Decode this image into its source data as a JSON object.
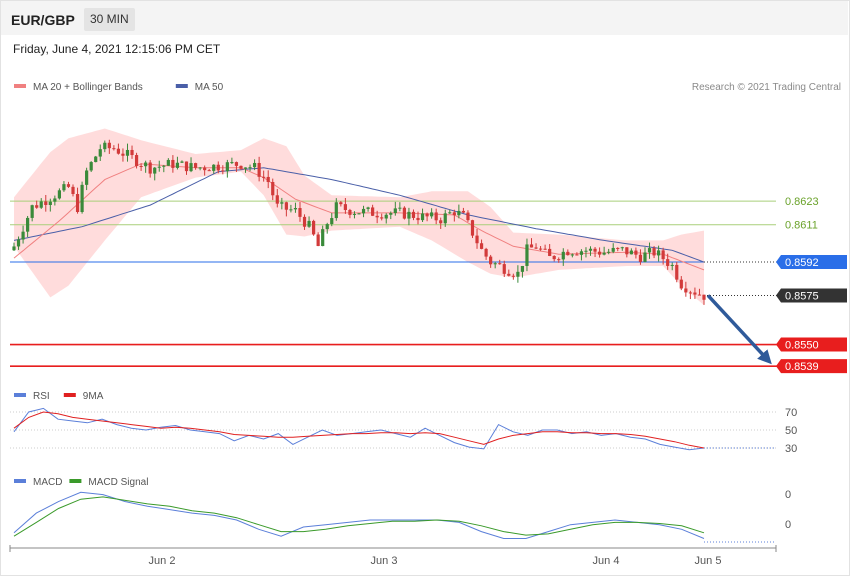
{
  "header": {
    "symbol": "EUR/GBP",
    "timeframe": "30 MIN"
  },
  "date_text": "Friday, June 4, 2021 12:15:06 PM CET",
  "copyright": "Research © 2021 Trading Central",
  "colors": {
    "bull": "#3a8a3a",
    "bear": "#d23a3a",
    "ma20": "#f08080",
    "ma50": "#4a5fa8",
    "band_fill": "#ffd6d6",
    "resistance": "#a9cf7a",
    "pivot": "#2a6ee8",
    "support": "#e81e1e",
    "price_tag": "#333333",
    "arrow": "#2f5a9a",
    "rsi": "#5b7fd9",
    "rsi_ma": "#e02020",
    "macd": "#5b7fd9",
    "macd_signal": "#3a9a2a"
  },
  "chart_data": [
    {
      "type": "candlestick",
      "name": "price",
      "legend": [
        {
          "label": "MA 20 + Bollinger Bands",
          "color": "#f08080"
        },
        {
          "label": "MA 50",
          "color": "#4a5fa8"
        }
      ],
      "x_tick_labels": [
        "Jun 2",
        "Jun 3",
        "Jun 4",
        "Jun 5"
      ],
      "ylim": [
        0.85345,
        0.86745
      ],
      "levels": [
        {
          "value": 0.8623,
          "label": "0.8623",
          "kind": "resistance"
        },
        {
          "value": 0.8611,
          "label": "0.8611",
          "kind": "resistance"
        },
        {
          "value": 0.8592,
          "label": "0.8592",
          "kind": "pivot"
        },
        {
          "value": 0.8575,
          "label": "0.8575",
          "kind": "last"
        },
        {
          "value": 0.855,
          "label": "0.8550",
          "kind": "support"
        },
        {
          "value": 0.8539,
          "label": "0.8539",
          "kind": "support"
        }
      ],
      "forecast_arrow": {
        "from_value": 0.8575,
        "to_value": 0.8539
      },
      "close_path": [
        [
          0,
          0.86
        ],
        [
          4,
          0.862
        ],
        [
          8,
          0.8625
        ],
        [
          12,
          0.863
        ],
        [
          14,
          0.862
        ],
        [
          16,
          0.8638
        ],
        [
          19,
          0.865
        ],
        [
          22,
          0.865
        ],
        [
          26,
          0.8645
        ],
        [
          30,
          0.864
        ],
        [
          35,
          0.8642
        ],
        [
          40,
          0.864
        ],
        [
          45,
          0.8641
        ],
        [
          50,
          0.8642
        ],
        [
          53,
          0.864
        ],
        [
          56,
          0.8633
        ],
        [
          58,
          0.862
        ],
        [
          62,
          0.8618
        ],
        [
          65,
          0.861
        ],
        [
          67,
          0.86
        ],
        [
          69,
          0.8612
        ],
        [
          71,
          0.862
        ],
        [
          75,
          0.8618
        ],
        [
          80,
          0.8617
        ],
        [
          85,
          0.8617
        ],
        [
          90,
          0.8615
        ],
        [
          94,
          0.8614
        ],
        [
          97,
          0.8618
        ],
        [
          99,
          0.8615
        ],
        [
          101,
          0.8607
        ],
        [
          103,
          0.8598
        ],
        [
          105,
          0.8592
        ],
        [
          107,
          0.859
        ],
        [
          109,
          0.8588
        ],
        [
          111,
          0.8586
        ],
        [
          113,
          0.8598
        ],
        [
          115,
          0.86
        ],
        [
          118,
          0.8594
        ],
        [
          122,
          0.8598
        ],
        [
          126,
          0.8598
        ],
        [
          130,
          0.8597
        ],
        [
          134,
          0.8598
        ],
        [
          138,
          0.8595
        ],
        [
          141,
          0.8597
        ],
        [
          143,
          0.8594
        ],
        [
          145,
          0.859
        ],
        [
          147,
          0.8581
        ],
        [
          149,
          0.8578
        ],
        [
          151,
          0.8576
        ],
        [
          152,
          0.8575
        ]
      ],
      "ma50_path": [
        [
          0,
          0.8603
        ],
        [
          15,
          0.861
        ],
        [
          30,
          0.8621
        ],
        [
          45,
          0.8638
        ],
        [
          55,
          0.864
        ],
        [
          70,
          0.8634
        ],
        [
          85,
          0.8626
        ],
        [
          100,
          0.8616
        ],
        [
          115,
          0.8609
        ],
        [
          130,
          0.8603
        ],
        [
          145,
          0.8598
        ],
        [
          152,
          0.8592
        ]
      ],
      "ma20_path": [
        [
          0,
          0.8594
        ],
        [
          10,
          0.8613
        ],
        [
          20,
          0.8634
        ],
        [
          28,
          0.8642
        ],
        [
          40,
          0.864
        ],
        [
          50,
          0.864
        ],
        [
          55,
          0.8635
        ],
        [
          62,
          0.8624
        ],
        [
          70,
          0.8617
        ],
        [
          85,
          0.8617
        ],
        [
          97,
          0.8616
        ],
        [
          103,
          0.8608
        ],
        [
          110,
          0.86
        ],
        [
          120,
          0.8596
        ],
        [
          135,
          0.8597
        ],
        [
          143,
          0.8596
        ],
        [
          152,
          0.8588
        ]
      ],
      "bands": {
        "upper": [
          [
            0,
            0.8625
          ],
          [
            8,
            0.8648
          ],
          [
            12,
            0.8655
          ],
          [
            20,
            0.866
          ],
          [
            28,
            0.8654
          ],
          [
            40,
            0.8647
          ],
          [
            50,
            0.8649
          ],
          [
            55,
            0.8655
          ],
          [
            60,
            0.8651
          ],
          [
            64,
            0.8636
          ],
          [
            70,
            0.8626
          ],
          [
            85,
            0.8625
          ],
          [
            92,
            0.8628
          ],
          [
            100,
            0.8628
          ],
          [
            105,
            0.862
          ],
          [
            110,
            0.8607
          ],
          [
            120,
            0.8606
          ],
          [
            135,
            0.8603
          ],
          [
            143,
            0.8603
          ],
          [
            147,
            0.8606
          ],
          [
            152,
            0.8608
          ]
        ],
        "lower": [
          [
            0,
            0.86
          ],
          [
            8,
            0.8574
          ],
          [
            12,
            0.858
          ],
          [
            20,
            0.8603
          ],
          [
            28,
            0.8625
          ],
          [
            40,
            0.8635
          ],
          [
            50,
            0.8638
          ],
          [
            55,
            0.8626
          ],
          [
            60,
            0.8606
          ],
          [
            64,
            0.8605
          ],
          [
            70,
            0.8608
          ],
          [
            85,
            0.861
          ],
          [
            92,
            0.8603
          ],
          [
            100,
            0.8592
          ],
          [
            105,
            0.8586
          ],
          [
            110,
            0.8584
          ],
          [
            120,
            0.8588
          ],
          [
            135,
            0.859
          ],
          [
            143,
            0.859
          ],
          [
            147,
            0.858
          ],
          [
            152,
            0.857
          ]
        ]
      }
    },
    {
      "type": "line",
      "name": "rsi",
      "legend": [
        {
          "label": "RSI",
          "color": "#5b7fd9"
        },
        {
          "label": "9MA",
          "color": "#e02020"
        }
      ],
      "y_tick_labels": [
        "70",
        "50",
        "30"
      ],
      "levels": [
        70,
        50,
        30
      ],
      "ylim": [
        10,
        80
      ],
      "series": [
        {
          "name": "RSI",
          "values": [
            48,
            70,
            74,
            62,
            60,
            58,
            62,
            56,
            52,
            50,
            53,
            55,
            50,
            48,
            46,
            38,
            44,
            40,
            46,
            34,
            42,
            50,
            44,
            46,
            48,
            50,
            46,
            42,
            52,
            44,
            36,
            31,
            29,
            56,
            48,
            44,
            50,
            50,
            46,
            48,
            44,
            46,
            42,
            40,
            34,
            31,
            28,
            30
          ]
        },
        {
          "name": "9MA",
          "values": [
            52,
            64,
            70,
            68,
            64,
            62,
            60,
            58,
            56,
            54,
            52,
            53,
            52,
            50,
            48,
            45,
            44,
            43,
            42,
            42,
            43,
            44,
            45,
            46,
            46,
            47,
            47,
            46,
            47,
            46,
            42,
            38,
            34,
            40,
            44,
            46,
            48,
            48,
            47,
            47,
            46,
            46,
            45,
            43,
            40,
            37,
            33,
            30
          ]
        }
      ]
    },
    {
      "type": "line",
      "name": "macd",
      "legend": [
        {
          "label": "MACD",
          "color": "#5b7fd9"
        },
        {
          "label": "MACD Signal",
          "color": "#3a9a2a"
        }
      ],
      "y_tick_labels": [
        "0",
        "0"
      ],
      "series": [
        {
          "name": "MACD",
          "values": [
            3,
            20,
            30,
            38,
            36,
            30,
            26,
            23,
            20,
            18,
            14,
            6,
            0,
            8,
            10,
            12,
            14,
            14,
            14,
            14,
            12,
            4,
            -2,
            -2,
            4,
            10,
            12,
            14,
            12,
            10,
            6,
            -2
          ]
        },
        {
          "name": "MACD Signal",
          "values": [
            0,
            12,
            24,
            32,
            34,
            31,
            28,
            26,
            22,
            20,
            16,
            10,
            4,
            4,
            6,
            9,
            11,
            13,
            13,
            14,
            13,
            9,
            4,
            1,
            2,
            6,
            10,
            12,
            12,
            11,
            9,
            3
          ]
        }
      ]
    }
  ]
}
